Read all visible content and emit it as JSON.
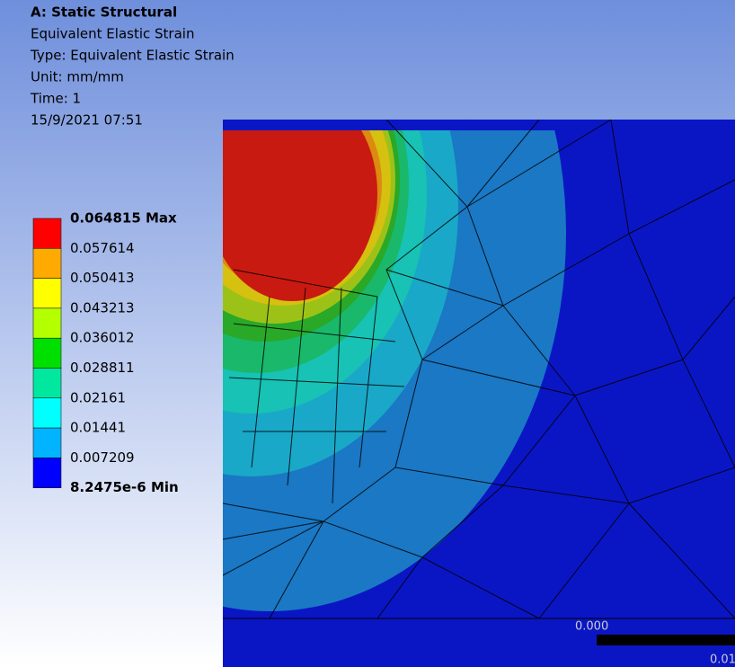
{
  "header": {
    "title": "A: Static Structural",
    "lines": [
      "Equivalent Elastic Strain",
      "Type: Equivalent Elastic Strain",
      "Unit: mm/mm",
      "Time: 1",
      "15/9/2021 07:51"
    ]
  },
  "legend": {
    "labels": [
      "0.064815 Max",
      "0.057614",
      "0.050413",
      "0.043213",
      "0.036012",
      "0.028811",
      "0.02161",
      "0.01441",
      "0.007209",
      "8.2475e-6 Min"
    ],
    "colors": [
      "#ff0000",
      "#ffaa00",
      "#ffff00",
      "#b4ff00",
      "#00e000",
      "#00e8a0",
      "#00ffff",
      "#00b4ff",
      "#0000ff"
    ]
  },
  "scale": {
    "labels": [
      "0.000",
      "0.01"
    ]
  }
}
